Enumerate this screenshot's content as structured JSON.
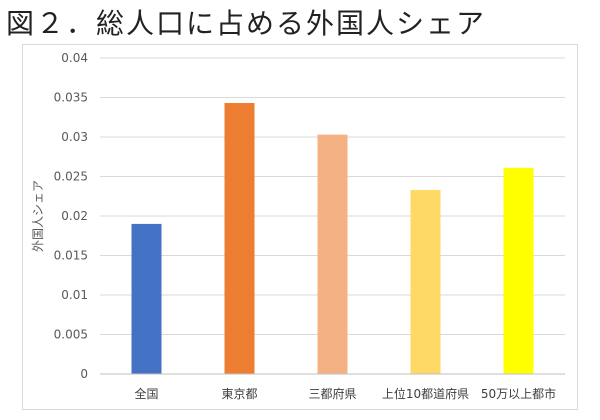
{
  "figure_title": "図２．総人口に占める外国人シェア",
  "chart_data": {
    "type": "bar",
    "categories": [
      "全国",
      "東京都",
      "三都府県",
      "上位10都道府県",
      "50万以上都市"
    ],
    "values": [
      0.019,
      0.0343,
      0.0303,
      0.0233,
      0.0261
    ],
    "colors": [
      "#4472c4",
      "#ed7d31",
      "#f4b183",
      "#ffd966",
      "#ffff00"
    ],
    "ylabel": "外国人シェア",
    "xlabel": "",
    "ylim": [
      0,
      0.04
    ],
    "yticks": [
      "0",
      "0.005",
      "0.01",
      "0.015",
      "0.02",
      "0.025",
      "0.03",
      "0.035",
      "0.04"
    ],
    "grid": true,
    "legend": "none"
  }
}
